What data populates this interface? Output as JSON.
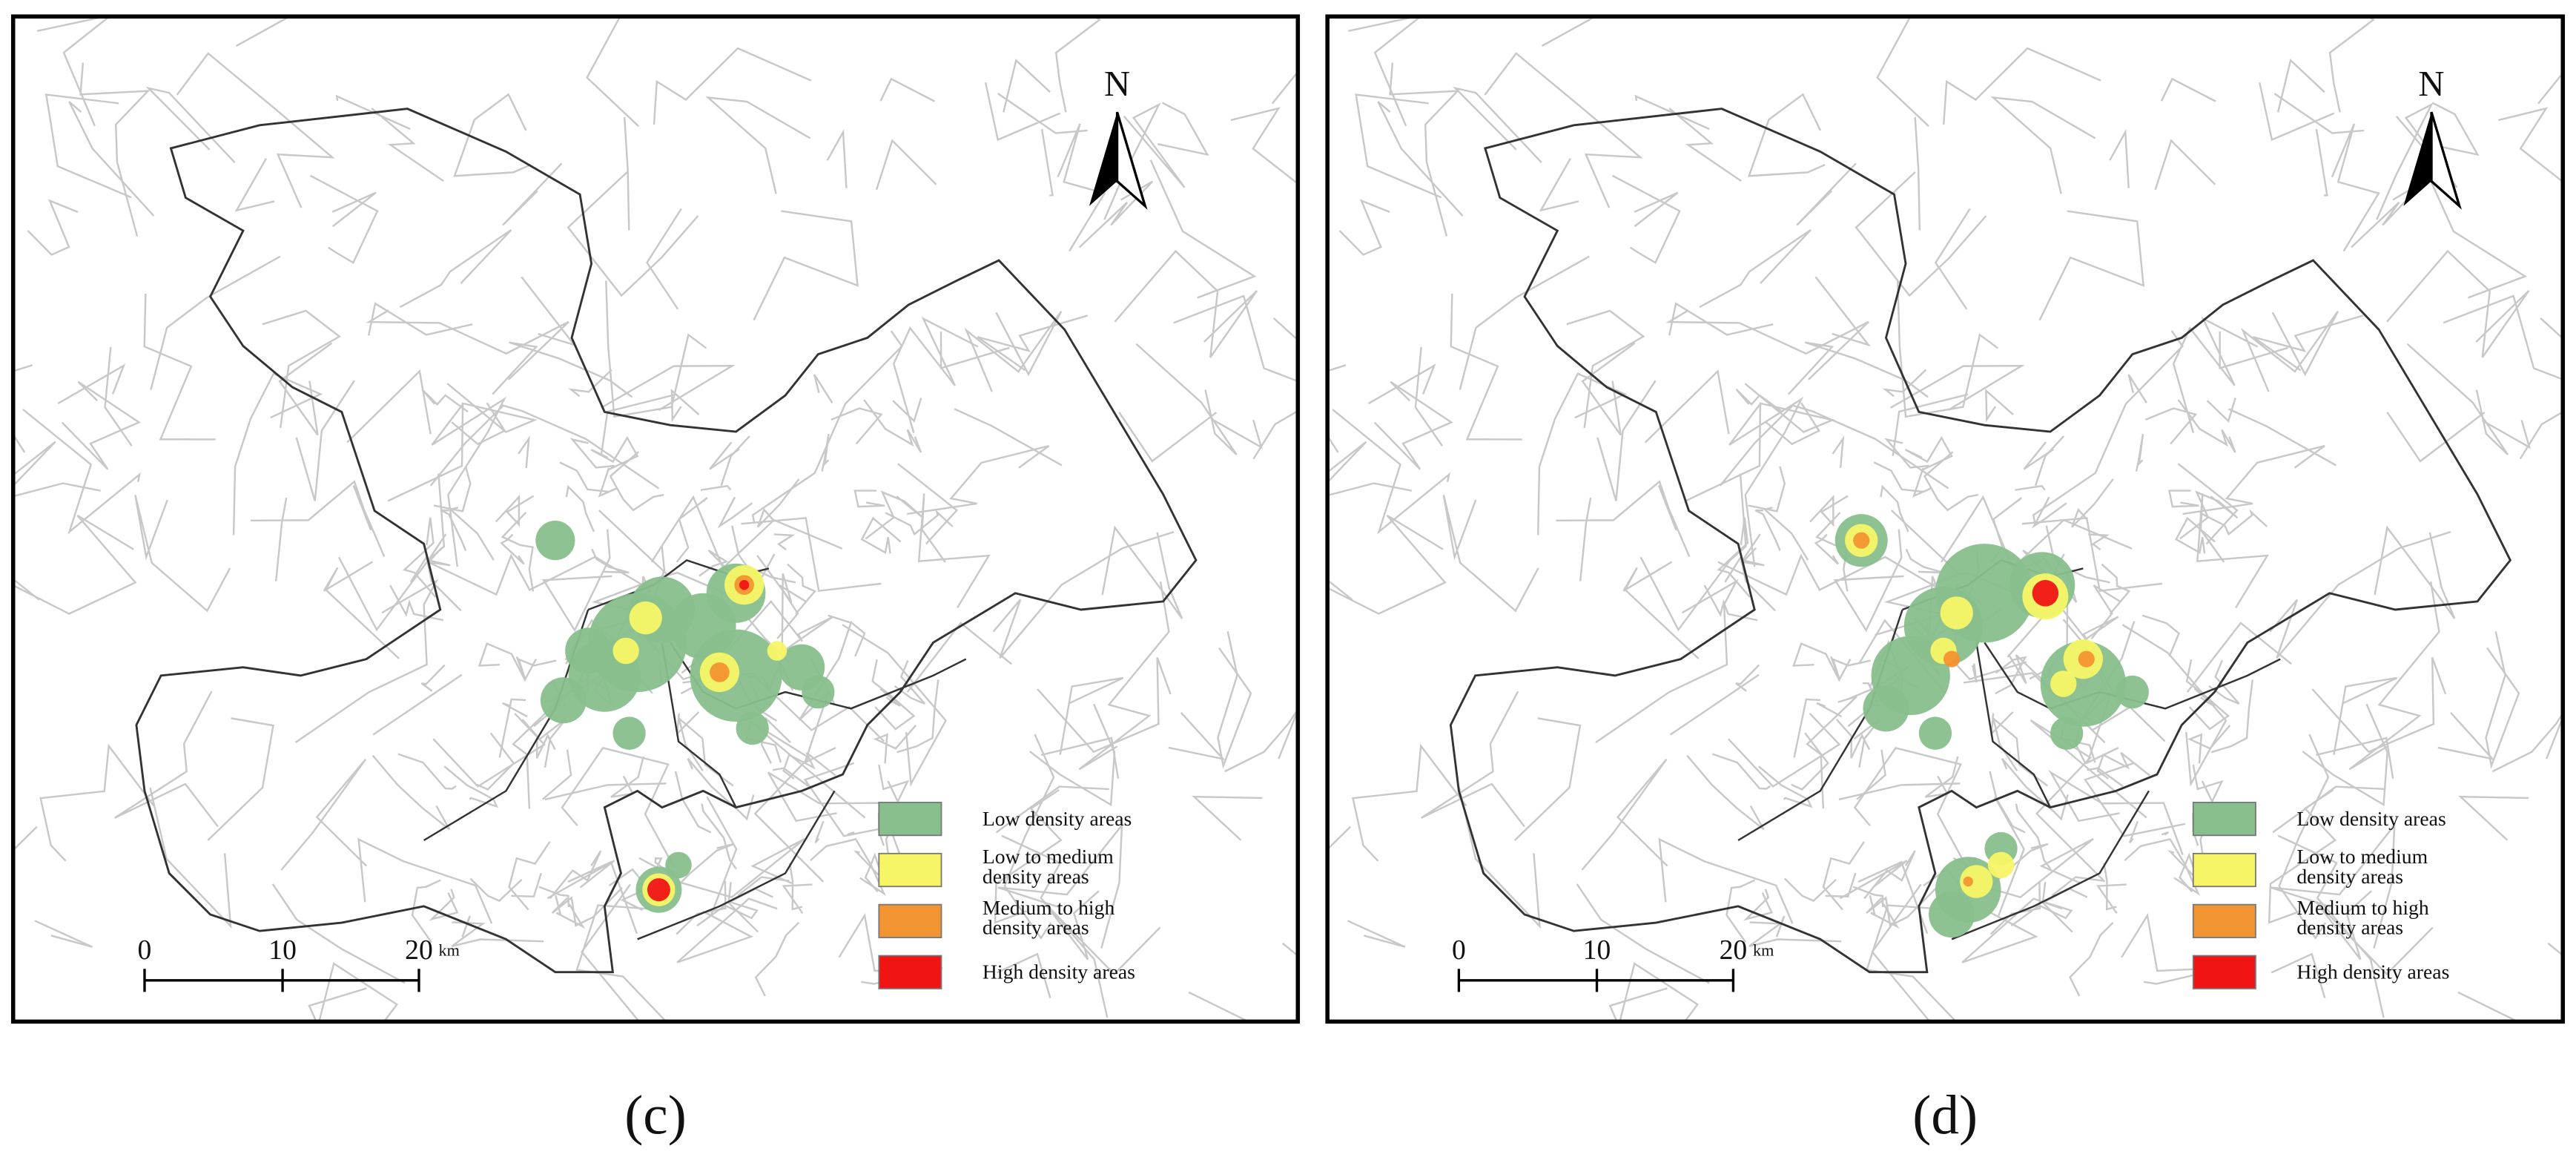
{
  "panels": [
    {
      "caption": "(c)",
      "north": "N",
      "scale": {
        "ticks": [
          "0",
          "10",
          "20"
        ],
        "unit": "km"
      },
      "legend": [
        {
          "lines": [
            "Low density areas"
          ],
          "color": "#88bf8c"
        },
        {
          "lines": [
            "Low to medium",
            "density areas"
          ],
          "color": "#f7f566"
        },
        {
          "lines": [
            "Medium to high",
            "density areas"
          ],
          "color": "#f39432"
        },
        {
          "lines": [
            "High density areas"
          ],
          "color": "#f01414"
        }
      ]
    },
    {
      "caption": "(d)",
      "north": "N",
      "scale": {
        "ticks": [
          "0",
          "10",
          "20"
        ],
        "unit": "km"
      },
      "legend": [
        {
          "lines": [
            "Low density areas"
          ],
          "color": "#88bf8c"
        },
        {
          "lines": [
            "Low to medium",
            "density areas"
          ],
          "color": "#f7f566"
        },
        {
          "lines": [
            "Medium to high",
            "density areas"
          ],
          "color": "#f39432"
        },
        {
          "lines": [
            "High density areas"
          ],
          "color": "#f01414"
        }
      ]
    }
  ]
}
